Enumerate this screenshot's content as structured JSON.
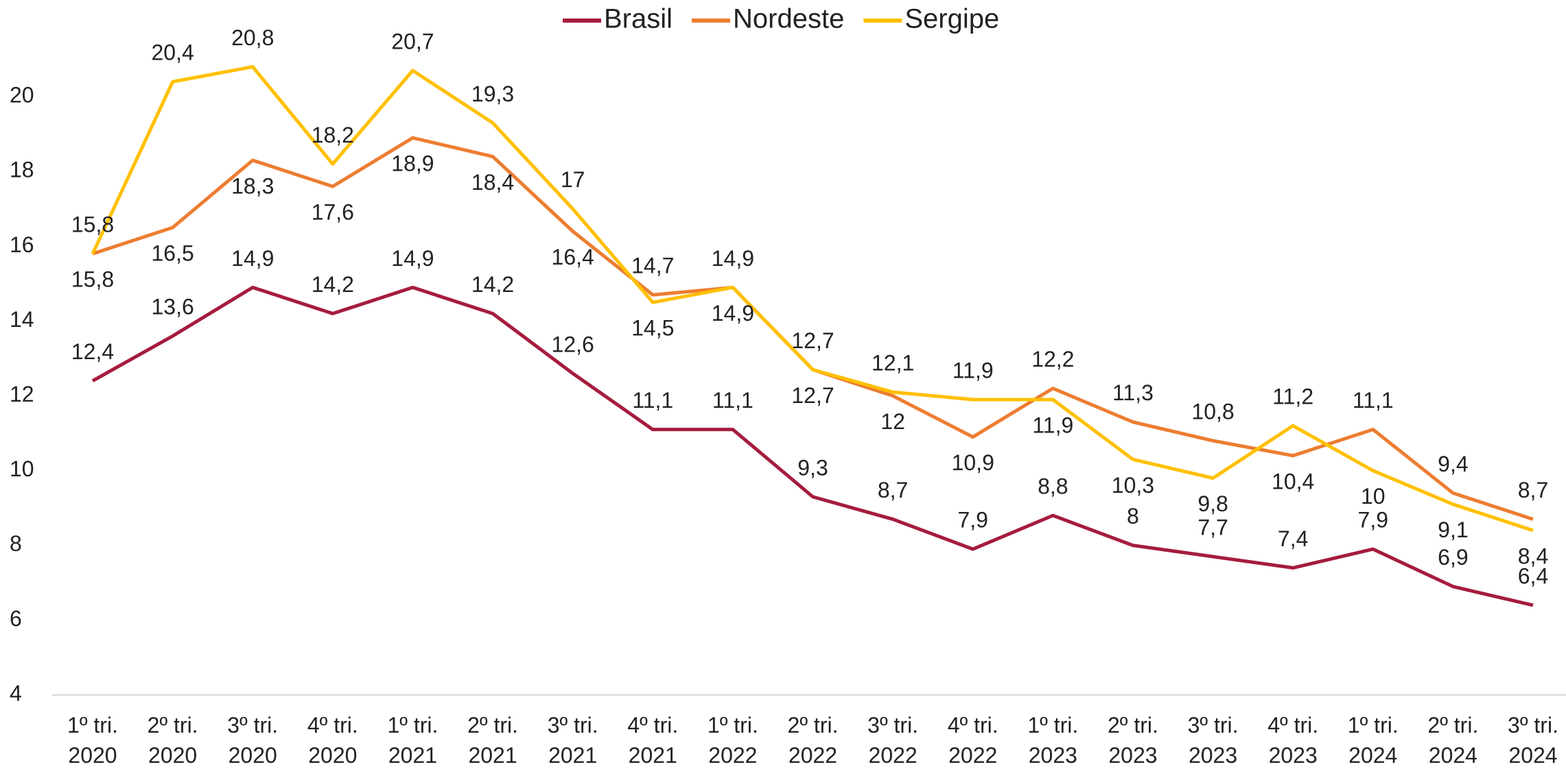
{
  "chart_data": {
    "type": "line",
    "categories": [
      "1º tri. 2020",
      "2º tri. 2020",
      "3º tri. 2020",
      "4º tri. 2020",
      "1º tri. 2021",
      "2º tri. 2021",
      "3º tri. 2021",
      "4º tri. 2021",
      "1º tri. 2022",
      "2º tri. 2022",
      "3º tri. 2022",
      "4º tri. 2022",
      "1º tri. 2023",
      "2º tri. 2023",
      "3º tri. 2023",
      "4º tri. 2023",
      "1º tri. 2024",
      "2º tri. 2024",
      "3º tri. 2024"
    ],
    "series": [
      {
        "name": "Brasil",
        "color": "#a51c3d",
        "values": [
          12.4,
          13.6,
          14.9,
          14.2,
          14.9,
          14.2,
          12.6,
          11.1,
          11.1,
          9.3,
          8.7,
          7.9,
          8.8,
          8,
          7.7,
          7.4,
          7.9,
          6.9,
          6.4
        ],
        "value_labels": [
          "12,4",
          "13,6",
          "14,9",
          "14,2",
          "14,9",
          "14,2",
          "12,6",
          "11,1",
          "11,1",
          "9,3",
          "8,7",
          "7,9",
          "8,8",
          "8",
          "7,7",
          "7,4",
          "7,9",
          "6,9",
          "6,4"
        ]
      },
      {
        "name": "Nordeste",
        "color": "#ed7d31",
        "values": [
          15.8,
          16.5,
          18.3,
          17.6,
          18.9,
          18.4,
          16.4,
          14.7,
          14.9,
          12.7,
          12,
          10.9,
          12.2,
          11.3,
          10.8,
          10.4,
          11.1,
          9.4,
          8.7
        ],
        "value_labels": [
          "15,8",
          "16,5",
          "18,3",
          "17,6",
          "18,9",
          "18,4",
          "16,4",
          "14,7",
          "14,9",
          "12,7",
          "12",
          "10,9",
          "12,2",
          "11,3",
          "10,8",
          "10,4",
          "11,1",
          "9,4",
          "8,7"
        ]
      },
      {
        "name": "Sergipe",
        "color": "#ffc000",
        "values": [
          15.8,
          20.4,
          20.8,
          18.2,
          20.7,
          19.3,
          17,
          14.5,
          14.9,
          12.7,
          12.1,
          11.9,
          11.9,
          10.3,
          9.8,
          11.2,
          10,
          9.1,
          8.4
        ],
        "value_labels": [
          "15,8",
          "20,4",
          "20,8",
          "18,2",
          "20,7",
          "19,3",
          "17",
          "14,5",
          "14,9",
          "12,7",
          "12,1",
          "11,9",
          "11,9",
          "10,3",
          "9,8",
          "11,2",
          "10",
          "9,1",
          "8,4"
        ]
      }
    ],
    "ylim": [
      4,
      22
    ],
    "yticks": [
      4,
      6,
      8,
      10,
      12,
      14,
      16,
      18,
      20
    ],
    "grid": false,
    "legend_position": "top"
  }
}
